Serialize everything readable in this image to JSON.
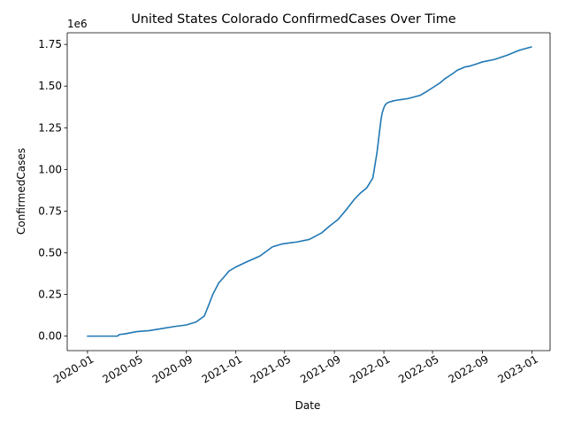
{
  "chart_data": {
    "type": "line",
    "title": "United States Colorado ConfirmedCases Over Time",
    "xlabel": "Date",
    "ylabel": "ConfirmedCases",
    "y_offset_label": "1e6",
    "x_range": [
      "2019-11-12",
      "2023-02-15"
    ],
    "ylim": [
      -0.087,
      1.82
    ],
    "y_unit_multiplier": 1000000,
    "x_ticks": [
      "2020-01",
      "2020-05",
      "2020-09",
      "2021-01",
      "2021-05",
      "2021-09",
      "2022-01",
      "2022-05",
      "2022-09",
      "2023-01"
    ],
    "y_ticks": [
      0.0,
      0.25,
      0.5,
      0.75,
      1.0,
      1.25,
      1.5,
      1.75
    ],
    "y_tick_labels": [
      "0.00",
      "0.25",
      "0.50",
      "0.75",
      "1.00",
      "1.25",
      "1.50",
      "1.75"
    ],
    "grid": false,
    "color": "#1f77b4",
    "series": [
      {
        "x": [
          "2020-01-01",
          "2020-03-01",
          "2020-03-15",
          "2020-03-20",
          "2020-04-01",
          "2020-05-01",
          "2020-06-01",
          "2020-07-01",
          "2020-08-01",
          "2020-09-01",
          "2020-09-25",
          "2020-10-15",
          "2020-10-25",
          "2020-11-05",
          "2020-11-20",
          "2020-12-01",
          "2020-12-15",
          "2021-01-01",
          "2021-02-01",
          "2021-03-01",
          "2021-04-01",
          "2021-04-25",
          "2021-05-10",
          "2021-06-01",
          "2021-07-01",
          "2021-08-01",
          "2021-08-20",
          "2021-09-10",
          "2021-10-01",
          "2021-10-20",
          "2021-11-05",
          "2021-11-20",
          "2021-12-05",
          "2021-12-15",
          "2021-12-20",
          "2021-12-25",
          "2021-12-28",
          "2022-01-01",
          "2022-01-05",
          "2022-01-10",
          "2022-01-15",
          "2022-01-20",
          "2022-01-25",
          "2022-02-01",
          "2022-02-15",
          "2022-03-01",
          "2022-04-01",
          "2022-04-15",
          "2022-05-01",
          "2022-05-20",
          "2022-06-01",
          "2022-06-20",
          "2022-07-01",
          "2022-07-20",
          "2022-08-01",
          "2022-08-20",
          "2022-09-01",
          "2022-10-01",
          "2022-11-01",
          "2022-12-01",
          "2022-12-31"
        ],
        "y": [
          0.0,
          0.0,
          0.0,
          0.01,
          0.013,
          0.027,
          0.033,
          0.045,
          0.057,
          0.067,
          0.085,
          0.12,
          0.18,
          0.25,
          0.32,
          0.35,
          0.39,
          0.415,
          0.45,
          0.48,
          0.535,
          0.553,
          0.558,
          0.565,
          0.58,
          0.62,
          0.66,
          0.7,
          0.76,
          0.82,
          0.86,
          0.89,
          0.95,
          1.1,
          1.2,
          1.3,
          1.34,
          1.37,
          1.39,
          1.4,
          1.405,
          1.408,
          1.412,
          1.415,
          1.42,
          1.425,
          1.445,
          1.465,
          1.49,
          1.52,
          1.545,
          1.575,
          1.595,
          1.615,
          1.62,
          1.635,
          1.645,
          1.66,
          1.685,
          1.715,
          1.735
        ]
      }
    ]
  }
}
